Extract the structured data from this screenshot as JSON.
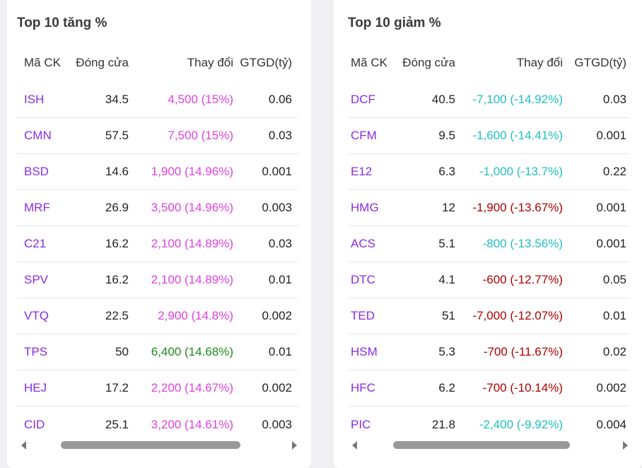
{
  "colors": {
    "ceiling": "#e040e0",
    "floor": "#20c0c0",
    "up": "#1a8a1a",
    "down": "#b00000",
    "code": "#8a2be2"
  },
  "left": {
    "title": "Top 10 tăng %",
    "headers": [
      "Mã CK",
      "Đóng cửa",
      "Thay đổi",
      "GTGD(tỷ)"
    ],
    "rows": [
      {
        "code": "ISH",
        "close": "34.5",
        "change": "4,500 (15%)",
        "vol": "0.06",
        "tone": "ceiling"
      },
      {
        "code": "CMN",
        "close": "57.5",
        "change": "7,500 (15%)",
        "vol": "0.03",
        "tone": "ceiling"
      },
      {
        "code": "BSD",
        "close": "14.6",
        "change": "1,900 (14.96%)",
        "vol": "0.001",
        "tone": "ceiling"
      },
      {
        "code": "MRF",
        "close": "26.9",
        "change": "3,500 (14.96%)",
        "vol": "0.003",
        "tone": "ceiling"
      },
      {
        "code": "C21",
        "close": "16.2",
        "change": "2,100 (14.89%)",
        "vol": "0.03",
        "tone": "ceiling"
      },
      {
        "code": "SPV",
        "close": "16.2",
        "change": "2,100 (14.89%)",
        "vol": "0.01",
        "tone": "ceiling"
      },
      {
        "code": "VTQ",
        "close": "22.5",
        "change": "2,900 (14.8%)",
        "vol": "0.002",
        "tone": "ceiling"
      },
      {
        "code": "TPS",
        "close": "50",
        "change": "6,400 (14.68%)",
        "vol": "0.01",
        "tone": "up"
      },
      {
        "code": "HEJ",
        "close": "17.2",
        "change": "2,200 (14.67%)",
        "vol": "0.002",
        "tone": "ceiling"
      },
      {
        "code": "CID",
        "close": "25.1",
        "change": "3,200 (14.61%)",
        "vol": "0.003",
        "tone": "ceiling"
      }
    ]
  },
  "right": {
    "title": "Top 10 giảm %",
    "headers": [
      "Mã CK",
      "Đóng cửa",
      "Thay đổi",
      "GTGD(tỷ)"
    ],
    "rows": [
      {
        "code": "DCF",
        "close": "40.5",
        "change": "-7,100 (-14.92%)",
        "vol": "0.03",
        "tone": "floor"
      },
      {
        "code": "CFM",
        "close": "9.5",
        "change": "-1,600 (-14.41%)",
        "vol": "0.001",
        "tone": "floor"
      },
      {
        "code": "E12",
        "close": "6.3",
        "change": "-1,000 (-13.7%)",
        "vol": "0.22",
        "tone": "floor"
      },
      {
        "code": "HMG",
        "close": "12",
        "change": "-1,900 (-13.67%)",
        "vol": "0.001",
        "tone": "down"
      },
      {
        "code": "ACS",
        "close": "5.1",
        "change": "-800 (-13.56%)",
        "vol": "0.001",
        "tone": "floor"
      },
      {
        "code": "DTC",
        "close": "4.1",
        "change": "-600 (-12.77%)",
        "vol": "0.05",
        "tone": "down"
      },
      {
        "code": "TED",
        "close": "51",
        "change": "-7,000 (-12.07%)",
        "vol": "0.01",
        "tone": "down"
      },
      {
        "code": "HSM",
        "close": "5.3",
        "change": "-700 (-11.67%)",
        "vol": "0.02",
        "tone": "down"
      },
      {
        "code": "HFC",
        "close": "6.2",
        "change": "-700 (-10.14%)",
        "vol": "0.002",
        "tone": "down"
      },
      {
        "code": "PIC",
        "close": "21.8",
        "change": "-2,400 (-9.92%)",
        "vol": "0.004",
        "tone": "floor"
      }
    ]
  }
}
